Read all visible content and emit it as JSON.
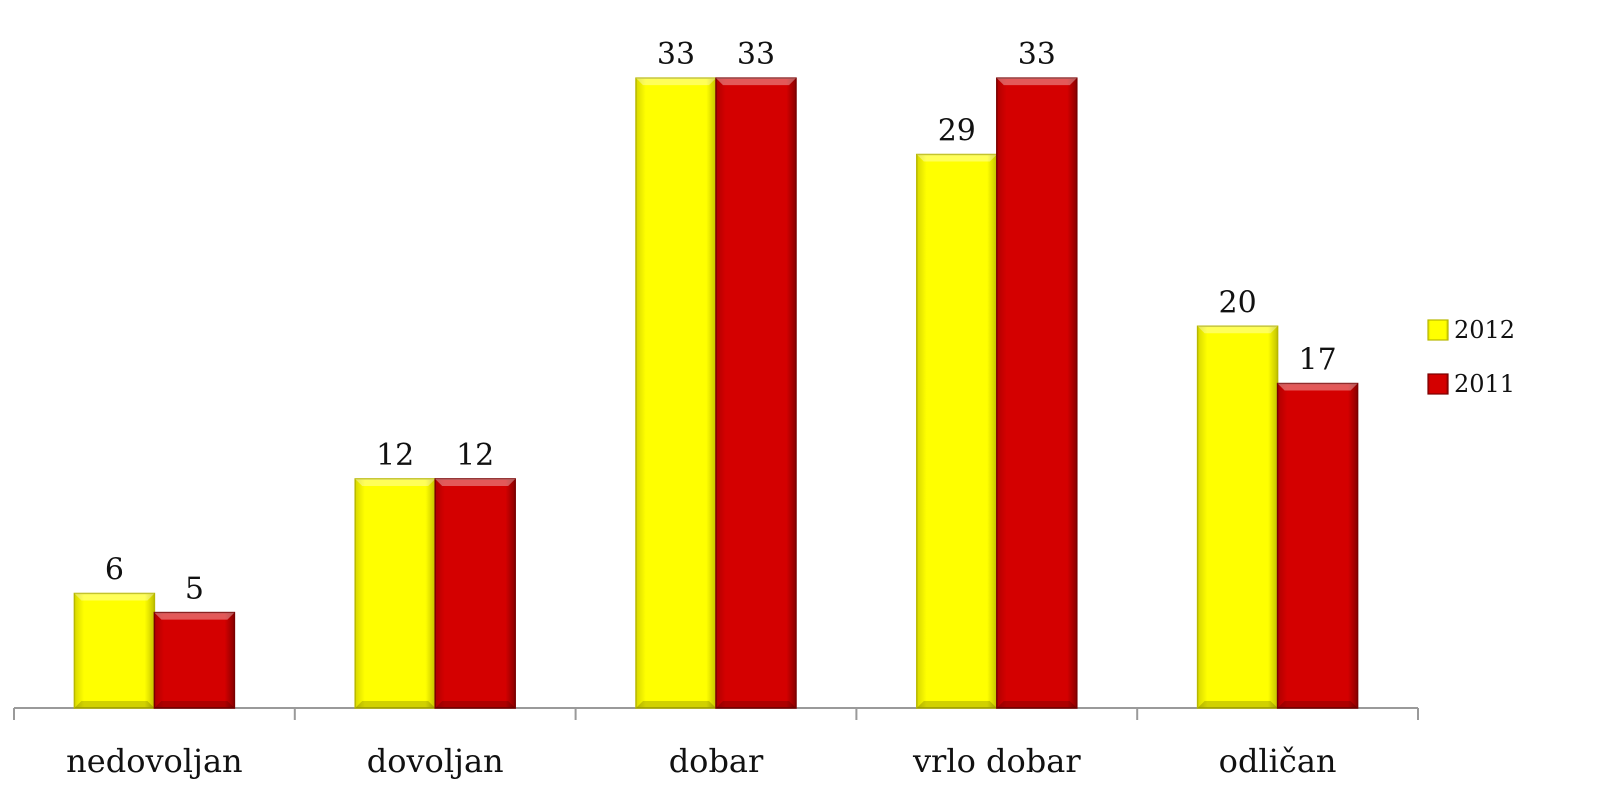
{
  "chart_data": {
    "type": "bar",
    "categories": [
      "nedovoljan",
      "dovoljan",
      "dobar",
      "vrlo dobar",
      "odličan"
    ],
    "series": [
      {
        "name": "2012",
        "values": [
          6,
          12,
          33,
          29,
          20
        ],
        "color": "#ffff00",
        "edge_color": "#b8b800"
      },
      {
        "name": "2011",
        "values": [
          5,
          12,
          33,
          33,
          17
        ],
        "color": "#d40000",
        "edge_color": "#7a0000"
      }
    ],
    "data_labels": [
      [
        "6",
        "12",
        "33",
        "29",
        "20"
      ],
      [
        "5",
        "12",
        "33",
        "33",
        "17"
      ]
    ],
    "title": "",
    "xlabel": "",
    "ylabel": "",
    "ylim": [
      0,
      35
    ],
    "grid": false,
    "legend_position": "right",
    "axis_color": "#9a9a9a"
  }
}
